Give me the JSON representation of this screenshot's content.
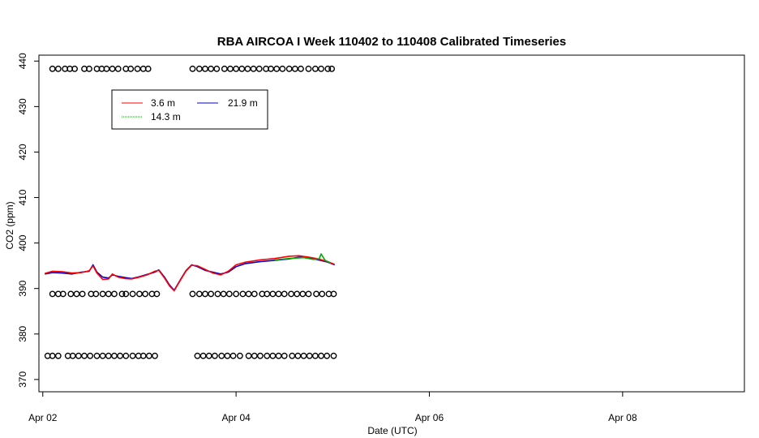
{
  "chart_data": {
    "type": "line",
    "title": "RBA AIRCOA I  Week 110402 to 110408  Calibrated Timeseries",
    "xlabel": "Date (UTC)",
    "ylabel": "CO2 (ppm)",
    "xlim": [
      1.96,
      9.26
    ],
    "ylim": [
      367.3,
      441.3
    ],
    "x_unit_note": "",
    "x_ticks": [
      {
        "value": 2,
        "label": "Apr 02"
      },
      {
        "value": 4,
        "label": "Apr 04"
      },
      {
        "value": 6,
        "label": "Apr 06"
      },
      {
        "value": 8,
        "label": "Apr 08"
      }
    ],
    "y_ticks": [
      370,
      380,
      390,
      400,
      410,
      420,
      430,
      440
    ],
    "legend": {
      "placement": "top-left",
      "entries": [
        {
          "name": "3.6 m",
          "color": "#ff0000"
        },
        {
          "name": "21.9 m",
          "color": "#0000cc"
        },
        {
          "name": "14.3 m",
          "color": "#00aa00"
        }
      ]
    },
    "series": [
      {
        "name": "21.9 m",
        "color": "#0000cc",
        "x": [
          2.02,
          2.1,
          2.2,
          2.3,
          2.4,
          2.48,
          2.52,
          2.56,
          2.62,
          2.68,
          2.72,
          2.78,
          2.85,
          2.92,
          3.0,
          3.08,
          3.16,
          3.2,
          3.26,
          3.31,
          3.36,
          3.42,
          3.48,
          3.54,
          3.6,
          3.68,
          3.76,
          3.84,
          3.92,
          4.0,
          4.1,
          4.25,
          4.4,
          4.55,
          4.65,
          4.75,
          4.85,
          4.95,
          5.02
        ],
        "y": [
          393.2,
          393.5,
          393.4,
          393.2,
          393.6,
          393.8,
          395.2,
          393.6,
          392.5,
          392.3,
          393.0,
          392.7,
          392.4,
          392.2,
          392.6,
          393.1,
          393.6,
          394.1,
          392.5,
          390.8,
          389.6,
          391.8,
          393.9,
          395.2,
          394.8,
          394.0,
          393.6,
          393.2,
          393.6,
          394.8,
          395.5,
          395.9,
          396.2,
          396.5,
          396.9,
          396.7,
          396.3,
          395.8,
          395.2
        ]
      },
      {
        "name": "3.6 m",
        "color": "#ff0000",
        "x": [
          2.02,
          2.1,
          2.2,
          2.3,
          2.4,
          2.48,
          2.52,
          2.56,
          2.62,
          2.68,
          2.72,
          2.78,
          2.85,
          2.92,
          3.0,
          3.08,
          3.16,
          3.2,
          3.26,
          3.31,
          3.36,
          3.42,
          3.48,
          3.54,
          3.6,
          3.68,
          3.76,
          3.84,
          3.92,
          4.0,
          4.1,
          4.25,
          4.4,
          4.55,
          4.65,
          4.75,
          4.85,
          4.95,
          5.02
        ],
        "y": [
          393.3,
          393.8,
          393.7,
          393.4,
          393.5,
          393.9,
          395.0,
          393.4,
          392.0,
          392.1,
          393.2,
          392.5,
          392.2,
          392.1,
          392.5,
          393.0,
          393.8,
          394.0,
          392.3,
          390.6,
          389.5,
          391.7,
          393.8,
          395.1,
          395.0,
          394.2,
          393.4,
          393.0,
          393.8,
          395.2,
          395.8,
          396.3,
          396.6,
          397.1,
          397.2,
          396.9,
          396.5,
          395.9,
          395.3
        ]
      },
      {
        "name": "14.3 m",
        "color": "#00aa00",
        "x": [
          4.4,
          4.55,
          4.7,
          4.8,
          4.86,
          4.88,
          4.92,
          4.98
        ],
        "y": [
          396.3,
          396.6,
          396.8,
          396.4,
          396.5,
          397.6,
          396.2,
          395.6
        ]
      }
    ],
    "marker_rows": [
      {
        "y": 438.3,
        "x": [
          2.1,
          2.16,
          2.23,
          2.28,
          2.33,
          2.43,
          2.48,
          2.56,
          2.61,
          2.66,
          2.72,
          2.78,
          2.86,
          2.91,
          2.98,
          3.04,
          3.09,
          3.55,
          3.62,
          3.68,
          3.74,
          3.8,
          3.88,
          3.94,
          4.0,
          4.06,
          4.12,
          4.18,
          4.24,
          4.31,
          4.36,
          4.42,
          4.48,
          4.55,
          4.61,
          4.67,
          4.75,
          4.82,
          4.88,
          4.95,
          4.99
        ]
      },
      {
        "y": 388.8,
        "x": [
          2.1,
          2.16,
          2.21,
          2.29,
          2.35,
          2.41,
          2.5,
          2.55,
          2.62,
          2.68,
          2.74,
          2.82,
          2.86,
          2.93,
          3.0,
          3.06,
          3.13,
          3.18,
          3.55,
          3.62,
          3.68,
          3.74,
          3.81,
          3.87,
          3.93,
          4.0,
          4.07,
          4.13,
          4.19,
          4.27,
          4.32,
          4.38,
          4.44,
          4.5,
          4.57,
          4.63,
          4.69,
          4.75,
          4.83,
          4.89,
          4.96,
          5.01
        ]
      },
      {
        "y": 375.2,
        "x": [
          2.05,
          2.1,
          2.16,
          2.26,
          2.31,
          2.37,
          2.43,
          2.49,
          2.56,
          2.62,
          2.68,
          2.74,
          2.8,
          2.86,
          2.93,
          2.99,
          3.04,
          3.1,
          3.16,
          3.6,
          3.66,
          3.72,
          3.78,
          3.85,
          3.91,
          3.97,
          4.04,
          4.13,
          4.19,
          4.25,
          4.32,
          4.38,
          4.44,
          4.5,
          4.58,
          4.64,
          4.7,
          4.76,
          4.82,
          4.88,
          4.94,
          5.01
        ]
      }
    ]
  }
}
